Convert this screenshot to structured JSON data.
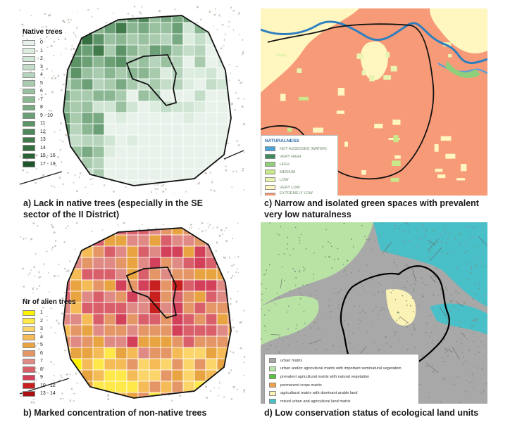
{
  "panels": {
    "a": {
      "caption_line1": "a) Lack in native trees (especially in the SE",
      "caption_line2": "sector of the II District)",
      "legend_title": "Native trees",
      "legend": [
        {
          "label": "0",
          "color": "#e8f2ea"
        },
        {
          "label": "1",
          "color": "#dcecdf"
        },
        {
          "label": "2",
          "color": "#d0e5d4"
        },
        {
          "label": "3",
          "color": "#c3ddc8"
        },
        {
          "label": "4",
          "color": "#b6d4bb"
        },
        {
          "label": "5",
          "color": "#a8cbae"
        },
        {
          "label": "6",
          "color": "#99c1a0"
        },
        {
          "label": "7",
          "color": "#8ab692"
        },
        {
          "label": "8",
          "color": "#7aaa83"
        },
        {
          "label": "9 - 10",
          "color": "#6b9f75"
        },
        {
          "label": "11",
          "color": "#5c9367"
        },
        {
          "label": "12",
          "color": "#4e8759"
        },
        {
          "label": "13",
          "color": "#417b4c"
        },
        {
          "label": "14",
          "color": "#356f40"
        },
        {
          "label": "15 - 16",
          "color": "#2a6235"
        },
        {
          "label": "17 - 19",
          "color": "#1f552a"
        }
      ]
    },
    "b": {
      "caption": "b) Marked concentration of non-native trees",
      "legend_title": "Nr of alien trees",
      "legend": [
        {
          "label": "1",
          "color": "#fff200"
        },
        {
          "label": "2",
          "color": "#ffe84a"
        },
        {
          "label": "3",
          "color": "#fbd46a"
        },
        {
          "label": "4",
          "color": "#f4bb56"
        },
        {
          "label": "5",
          "color": "#e9a442"
        },
        {
          "label": "6",
          "color": "#e59666"
        },
        {
          "label": "7",
          "color": "#e08a86"
        },
        {
          "label": "8",
          "color": "#d9606a"
        },
        {
          "label": "9",
          "color": "#d2405a"
        },
        {
          "label": "10 - 12",
          "color": "#c8201e"
        },
        {
          "label": "13 - 14",
          "color": "#aa1010"
        }
      ]
    },
    "c": {
      "caption_line1": "c) Narrow and isolated green spaces with prevalent",
      "caption_line2": "very low naturalness",
      "legend_title": "NATURALNESS",
      "legend": [
        {
          "label": "NOT ASSESSED (WATER)",
          "color": "#4aa3d6"
        },
        {
          "label": "VERY HIGH",
          "color": "#3d8a5a"
        },
        {
          "label": "HIGH",
          "color": "#8fce7a"
        },
        {
          "label": "MEDIUM",
          "color": "#c8e88a"
        },
        {
          "label": "LOW",
          "color": "#e8f4b0"
        },
        {
          "label": "VERY LOW",
          "color": "#fff6c0"
        },
        {
          "label": "EXTREMELY LOW (ARTIFICIAL)",
          "color": "#f79a78"
        }
      ]
    },
    "d": {
      "caption": "d) Low conservation status of ecological land units",
      "legend": [
        {
          "label": "urban matrix",
          "color": "#a8a8a8"
        },
        {
          "label": "urban and/or agricultural matrix with important seminatural vegetation",
          "color": "#b8e3a4"
        },
        {
          "label": "prevalent agricultural matrix with natural vegetation",
          "color": "#56c23c"
        },
        {
          "label": "permanent crops matrix",
          "color": "#f0a04a"
        },
        {
          "label": "agricultural matrix with dominant arable land",
          "color": "#fbf2b6"
        },
        {
          "label": "mixed urban and agricultural land matrix",
          "color": "#49bfc8"
        }
      ]
    }
  }
}
